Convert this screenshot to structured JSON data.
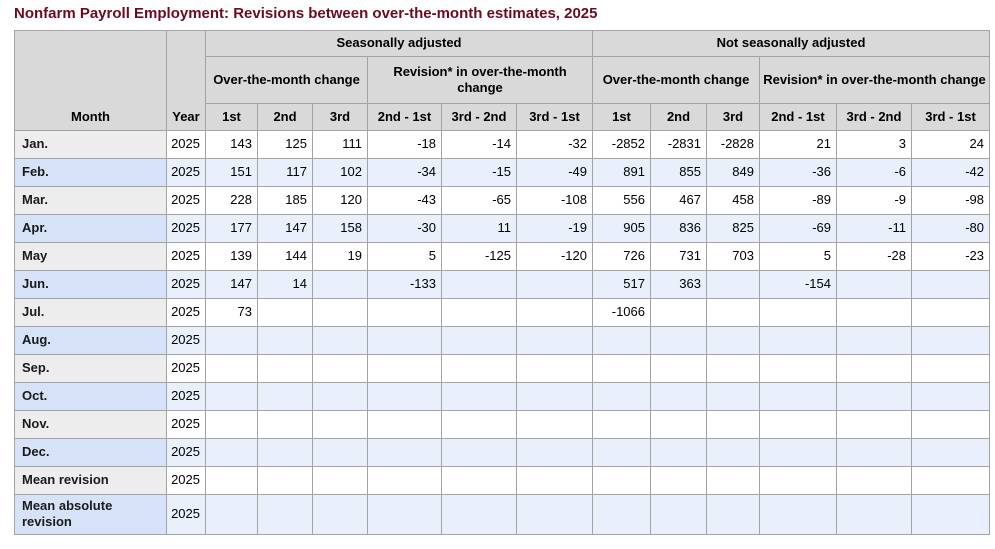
{
  "title": "Nonfarm Payroll Employment: Revisions between over-the-month estimates, 2025",
  "colors": {
    "title_text": "#6e0a1f",
    "header_bg": "#d9d9d9",
    "border": "#a3a3a3",
    "row_gray_label_bg": "#ededed",
    "row_white_bg": "#ffffff",
    "row_blue_label_bg": "#d6e2f7",
    "row_blue_bg": "#e9f0fb"
  },
  "table": {
    "group_headers": {
      "seasonally_adjusted": "Seasonally adjusted",
      "not_seasonally_adjusted": "Not seasonally adjusted"
    },
    "subgroup_headers": {
      "otm_change": "Over-the-month change",
      "revision_otm_change": "Revision* in over-the-month change"
    },
    "column_headers": {
      "month": "Month",
      "year": "Year",
      "first": "1st",
      "second": "2nd",
      "third": "3rd",
      "second_minus_first": "2nd - 1st",
      "third_minus_second": "3rd - 2nd",
      "third_minus_first": "3rd - 1st"
    },
    "rows": [
      {
        "label": "Jan.",
        "year": "2025",
        "values": [
          "143",
          "125",
          "111",
          "-18",
          "-14",
          "-32",
          "-2852",
          "-2831",
          "-2828",
          "21",
          "3",
          "24"
        ]
      },
      {
        "label": "Feb.",
        "year": "2025",
        "values": [
          "151",
          "117",
          "102",
          "-34",
          "-15",
          "-49",
          "891",
          "855",
          "849",
          "-36",
          "-6",
          "-42"
        ]
      },
      {
        "label": "Mar.",
        "year": "2025",
        "values": [
          "228",
          "185",
          "120",
          "-43",
          "-65",
          "-108",
          "556",
          "467",
          "458",
          "-89",
          "-9",
          "-98"
        ]
      },
      {
        "label": "Apr.",
        "year": "2025",
        "values": [
          "177",
          "147",
          "158",
          "-30",
          "11",
          "-19",
          "905",
          "836",
          "825",
          "-69",
          "-11",
          "-80"
        ]
      },
      {
        "label": "May",
        "year": "2025",
        "values": [
          "139",
          "144",
          "19",
          "5",
          "-125",
          "-120",
          "726",
          "731",
          "703",
          "5",
          "-28",
          "-23"
        ]
      },
      {
        "label": "Jun.",
        "year": "2025",
        "values": [
          "147",
          "14",
          "",
          "-133",
          "",
          "",
          "517",
          "363",
          "",
          "-154",
          "",
          ""
        ]
      },
      {
        "label": "Jul.",
        "year": "2025",
        "values": [
          "73",
          "",
          "",
          "",
          "",
          "",
          "-1066",
          "",
          "",
          "",
          "",
          ""
        ]
      },
      {
        "label": "Aug.",
        "year": "2025",
        "values": [
          "",
          "",
          "",
          "",
          "",
          "",
          "",
          "",
          "",
          "",
          "",
          ""
        ]
      },
      {
        "label": "Sep.",
        "year": "2025",
        "values": [
          "",
          "",
          "",
          "",
          "",
          "",
          "",
          "",
          "",
          "",
          "",
          ""
        ]
      },
      {
        "label": "Oct.",
        "year": "2025",
        "values": [
          "",
          "",
          "",
          "",
          "",
          "",
          "",
          "",
          "",
          "",
          "",
          ""
        ]
      },
      {
        "label": "Nov.",
        "year": "2025",
        "values": [
          "",
          "",
          "",
          "",
          "",
          "",
          "",
          "",
          "",
          "",
          "",
          ""
        ]
      },
      {
        "label": "Dec.",
        "year": "2025",
        "values": [
          "",
          "",
          "",
          "",
          "",
          "",
          "",
          "",
          "",
          "",
          "",
          ""
        ]
      },
      {
        "label": "Mean revision",
        "year": "2025",
        "values": [
          "",
          "",
          "",
          "",
          "",
          "",
          "",
          "",
          "",
          "",
          "",
          ""
        ]
      },
      {
        "label": "Mean absolute revision",
        "year": "2025",
        "values": [
          "",
          "",
          "",
          "",
          "",
          "",
          "",
          "",
          "",
          "",
          "",
          ""
        ]
      }
    ]
  },
  "chart_data": {
    "type": "table",
    "title": "Nonfarm Payroll Employment: Revisions between over-the-month estimates, 2025",
    "column_groups": [
      "Seasonally adjusted",
      "Not seasonally adjusted"
    ],
    "column_subgroups": [
      "Over-the-month change",
      "Revision* in over-the-month change"
    ],
    "columns": [
      "Month",
      "Year",
      "SA 1st",
      "SA 2nd",
      "SA 3rd",
      "SA 2nd - 1st",
      "SA 3rd - 2nd",
      "SA 3rd - 1st",
      "NSA 1st",
      "NSA 2nd",
      "NSA 3rd",
      "NSA 2nd - 1st",
      "NSA 3rd - 2nd",
      "NSA 3rd - 1st"
    ],
    "rows": [
      [
        "Jan.",
        2025,
        143,
        125,
        111,
        -18,
        -14,
        -32,
        -2852,
        -2831,
        -2828,
        21,
        3,
        24
      ],
      [
        "Feb.",
        2025,
        151,
        117,
        102,
        -34,
        -15,
        -49,
        891,
        855,
        849,
        -36,
        -6,
        -42
      ],
      [
        "Mar.",
        2025,
        228,
        185,
        120,
        -43,
        -65,
        -108,
        556,
        467,
        458,
        -89,
        -9,
        -98
      ],
      [
        "Apr.",
        2025,
        177,
        147,
        158,
        -30,
        11,
        -19,
        905,
        836,
        825,
        -69,
        -11,
        -80
      ],
      [
        "May",
        2025,
        139,
        144,
        19,
        5,
        -125,
        -120,
        726,
        731,
        703,
        5,
        -28,
        -23
      ],
      [
        "Jun.",
        2025,
        147,
        14,
        null,
        -133,
        null,
        null,
        517,
        363,
        null,
        -154,
        null,
        null
      ],
      [
        "Jul.",
        2025,
        73,
        null,
        null,
        null,
        null,
        null,
        -1066,
        null,
        null,
        null,
        null,
        null
      ],
      [
        "Aug.",
        2025,
        null,
        null,
        null,
        null,
        null,
        null,
        null,
        null,
        null,
        null,
        null,
        null
      ],
      [
        "Sep.",
        2025,
        null,
        null,
        null,
        null,
        null,
        null,
        null,
        null,
        null,
        null,
        null,
        null
      ],
      [
        "Oct.",
        2025,
        null,
        null,
        null,
        null,
        null,
        null,
        null,
        null,
        null,
        null,
        null,
        null
      ],
      [
        "Nov.",
        2025,
        null,
        null,
        null,
        null,
        null,
        null,
        null,
        null,
        null,
        null,
        null,
        null
      ],
      [
        "Dec.",
        2025,
        null,
        null,
        null,
        null,
        null,
        null,
        null,
        null,
        null,
        null,
        null,
        null
      ],
      [
        "Mean revision",
        2025,
        null,
        null,
        null,
        null,
        null,
        null,
        null,
        null,
        null,
        null,
        null,
        null
      ],
      [
        "Mean absolute revision",
        2025,
        null,
        null,
        null,
        null,
        null,
        null,
        null,
        null,
        null,
        null,
        null,
        null
      ]
    ]
  }
}
